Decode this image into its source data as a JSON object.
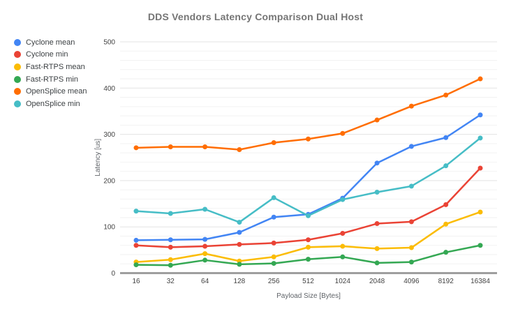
{
  "chart_data": {
    "type": "line",
    "title": "DDS Vendors Latency Comparison Dual Host",
    "xlabel": "Payload Size [Bytes]",
    "ylabel": "Latency [us]",
    "categories": [
      "16",
      "32",
      "64",
      "128",
      "256",
      "512",
      "1024",
      "2048",
      "4096",
      "8192",
      "16384"
    ],
    "ylim": [
      0,
      500
    ],
    "y_major_ticks": [
      0,
      100,
      200,
      300,
      400,
      500
    ],
    "y_minor_step": 20,
    "grid": true,
    "legend_position": "top-left",
    "series": [
      {
        "name": "Cyclone mean",
        "color": "#4285F4",
        "values": [
          71,
          72,
          73,
          88,
          121,
          127,
          162,
          238,
          274,
          293,
          342
        ]
      },
      {
        "name": "Cyclone min",
        "color": "#EA4335",
        "values": [
          60,
          56,
          58,
          62,
          65,
          72,
          86,
          107,
          111,
          148,
          227
        ]
      },
      {
        "name": "Fast-RTPS mean",
        "color": "#FBBC04",
        "values": [
          24,
          29,
          42,
          26,
          35,
          56,
          58,
          53,
          55,
          106,
          132
        ]
      },
      {
        "name": "Fast-RTPS min",
        "color": "#34A853",
        "values": [
          18,
          17,
          28,
          19,
          21,
          30,
          35,
          22,
          24,
          45,
          60
        ]
      },
      {
        "name": "OpenSplice mean",
        "color": "#FF6D01",
        "values": [
          271,
          273,
          273,
          267,
          282,
          290,
          302,
          331,
          361,
          385,
          420
        ]
      },
      {
        "name": "OpenSplice min",
        "color": "#46BDC6",
        "values": [
          134,
          129,
          138,
          110,
          163,
          124,
          159,
          175,
          188,
          232,
          292
        ]
      }
    ]
  },
  "style_colors": {
    "title_text": "#757575",
    "axis_tick_text": "#424242",
    "axis_title_text": "#5f6368",
    "legend_text": "#3c4043",
    "gridline_major": "#e3e3e3",
    "gridline_minor": "#f2f2f2",
    "baseline": "#9e9e9e",
    "background": "#ffffff"
  }
}
